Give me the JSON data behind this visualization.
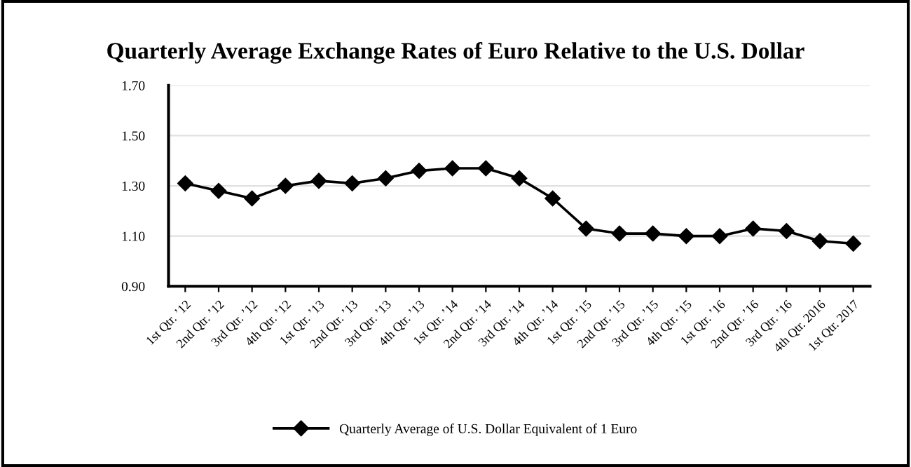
{
  "chart_data": {
    "type": "line",
    "title": "Quarterly Average Exchange Rates of Euro Relative to the U.S. Dollar",
    "categories": [
      "1st Qtr. ’12",
      "2nd Qtr. ’12",
      "3rd Qtr. ’12",
      "4th Qtr. ’12",
      "1st Qtr. ’13",
      "2nd Qtr. ’13",
      "3rd Qtr. ’13",
      "4th Qtr. ’13",
      "1st Qtr. ’14",
      "2nd Qtr. ’14",
      "3rd Qtr. ’14",
      "4th Qtr. ’14",
      "1st Qtr. ’15",
      "2nd Qtr. ’15",
      "3rd Qtr. ’15",
      "4th Qtr. ’15",
      "1st Qtr. ’16",
      "2nd Qtr. ’16",
      "3rd Qtr. ’16",
      "4th Qtr. 2016",
      "1st Qtr. 2017"
    ],
    "series": [
      {
        "name": "Quarterly Average of U.S. Dollar Equivalent of 1 Euro",
        "color": "#000000",
        "values": [
          1.31,
          1.28,
          1.25,
          1.3,
          1.32,
          1.31,
          1.33,
          1.36,
          1.37,
          1.37,
          1.33,
          1.25,
          1.13,
          1.11,
          1.11,
          1.1,
          1.1,
          1.13,
          1.12,
          1.08,
          1.07
        ]
      }
    ],
    "ylim": [
      0.9,
      1.7
    ],
    "yticks": [
      {
        "value": 0.9,
        "label": "0.90"
      },
      {
        "value": 1.1,
        "label": "1.10"
      },
      {
        "value": 1.3,
        "label": "1.30"
      },
      {
        "value": 1.5,
        "label": "1.50"
      },
      {
        "value": 1.7,
        "label": "1.70"
      }
    ],
    "grid": "y",
    "legend": "bottom",
    "marker": "diamond",
    "line_style": "solid"
  }
}
